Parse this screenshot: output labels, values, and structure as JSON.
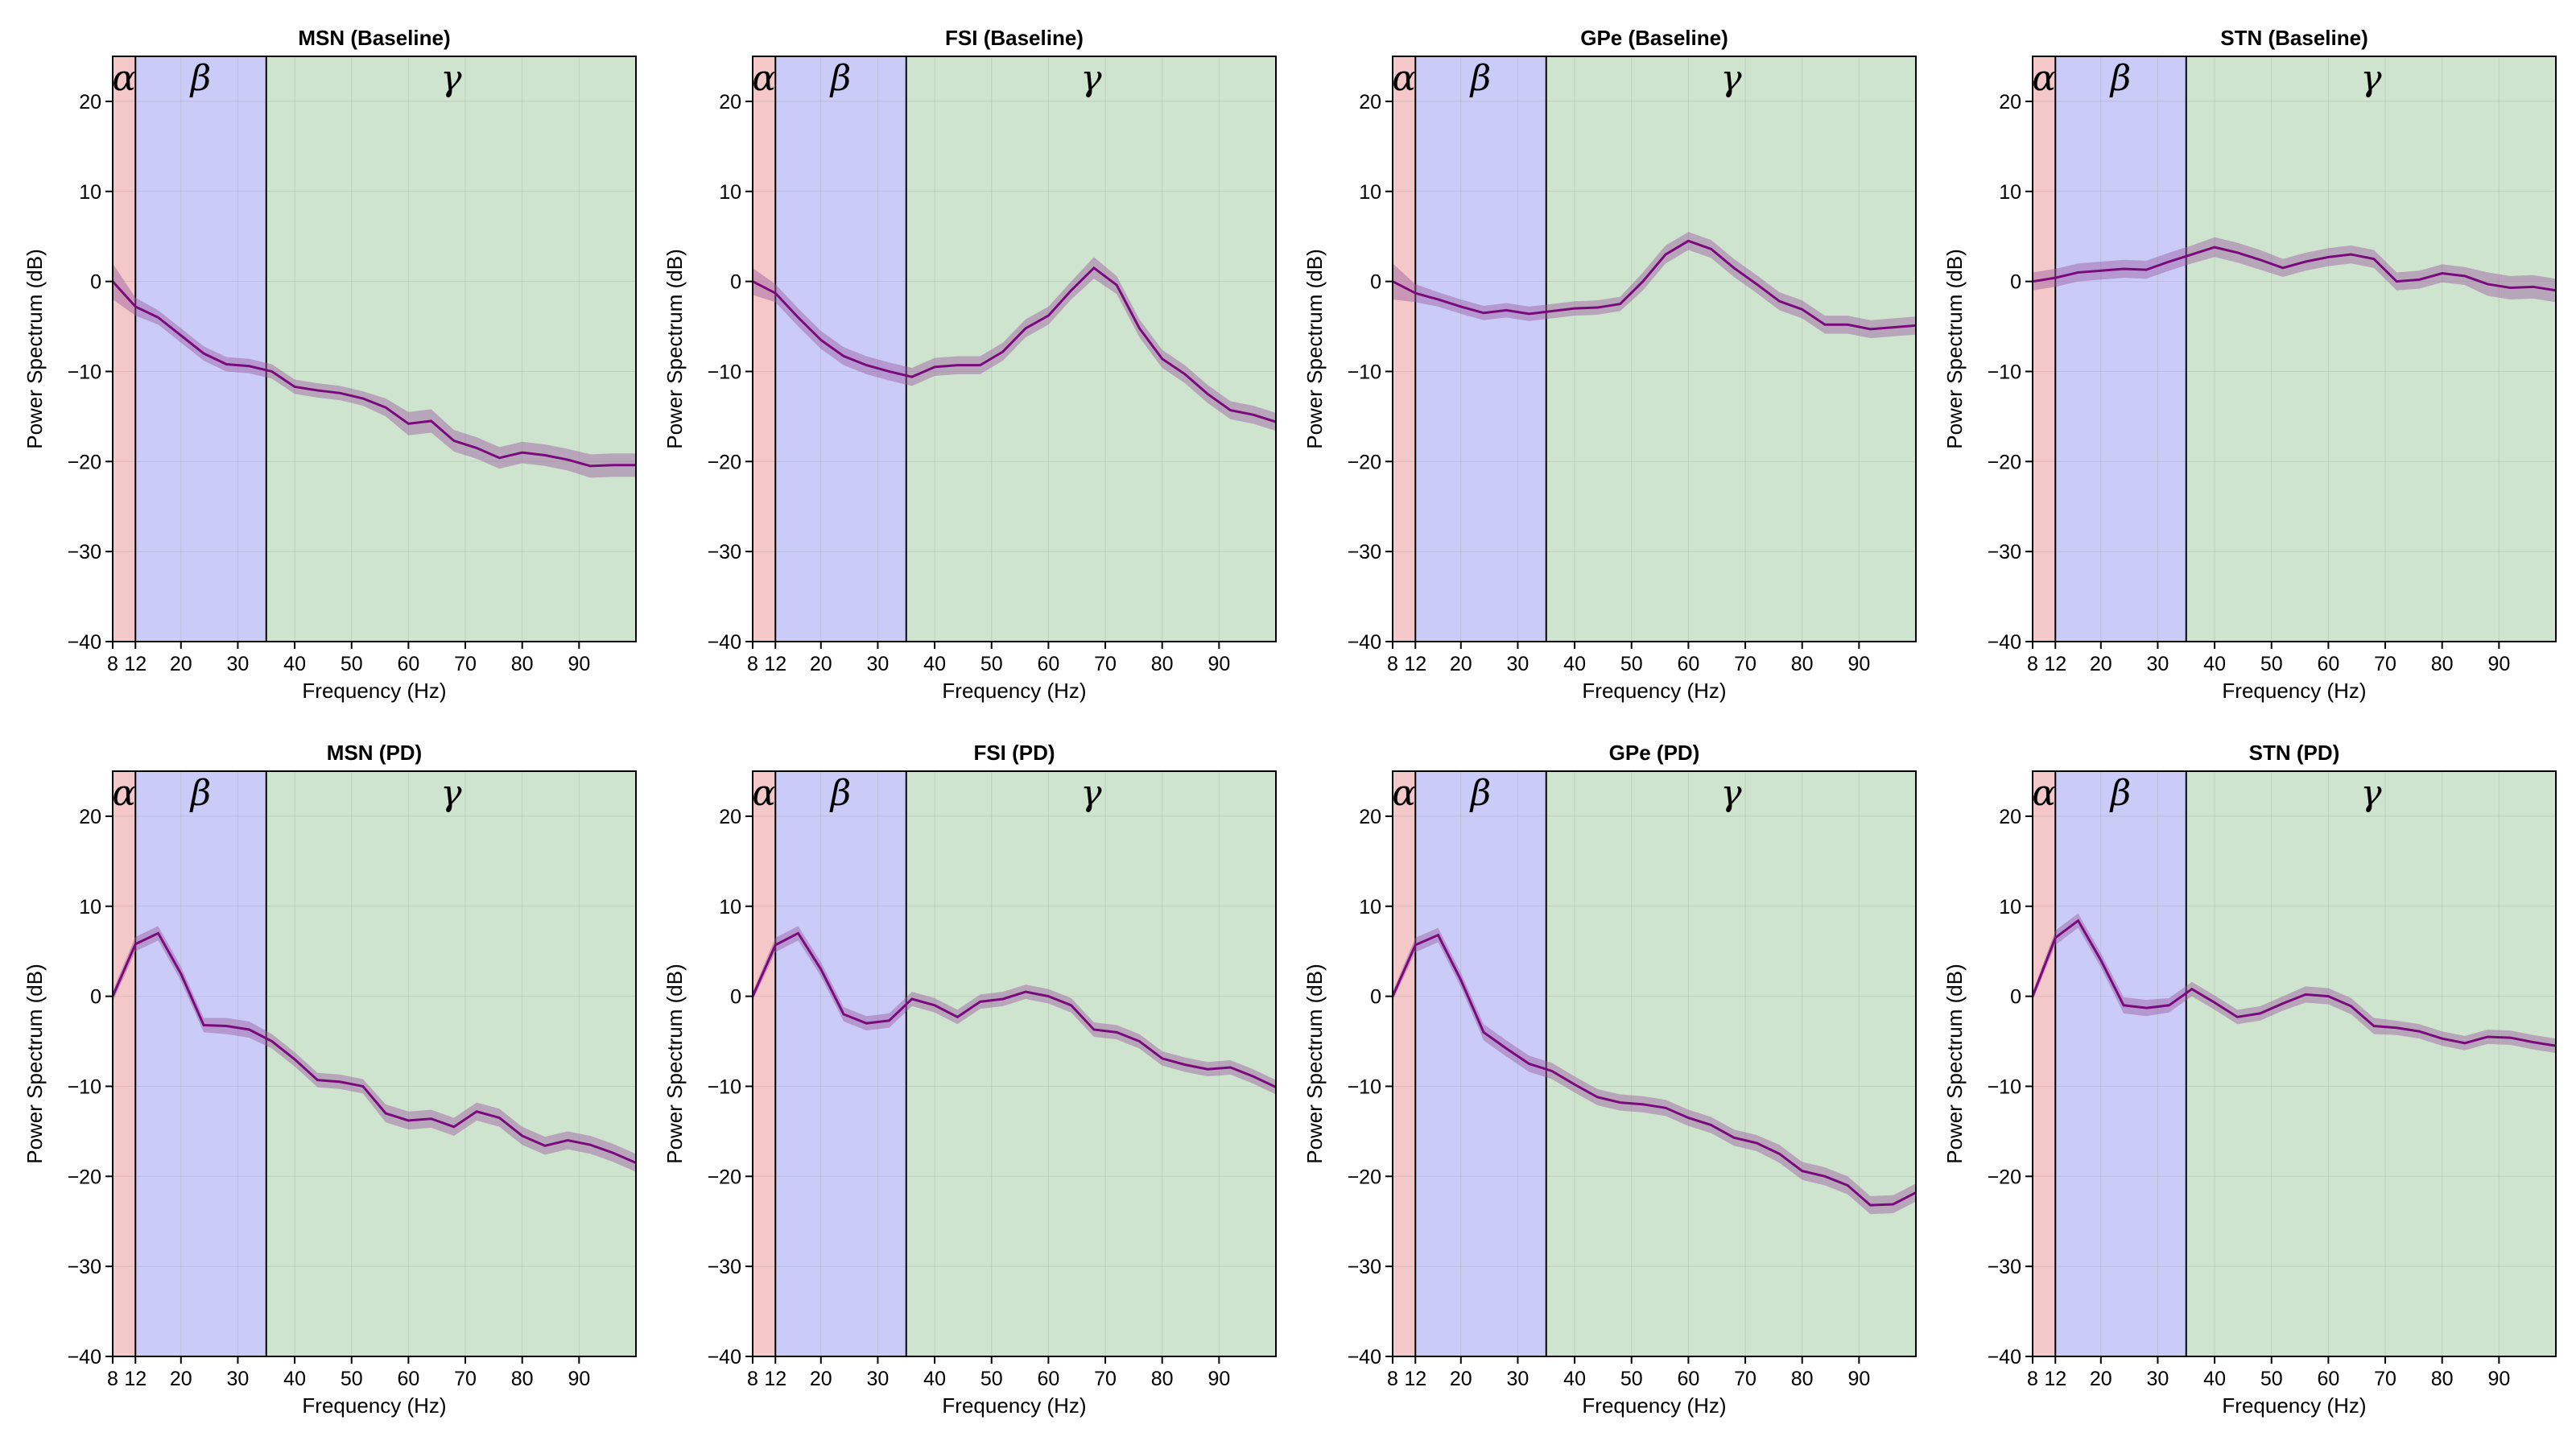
{
  "colors": {
    "alpha_band": "#f4c7c9",
    "beta_band": "#cbcbf8",
    "gamma_band": "#cfe4cf",
    "grid": "#9aa99a",
    "line": "#7a0a7c",
    "ci": "#9a5a9e"
  },
  "chart_data": [
    {
      "type": "line",
      "title": "MSN (Baseline)",
      "xlabel": "Frequency (Hz)",
      "ylabel": "Power Spectrum (dB)",
      "xlim": [
        8,
        100
      ],
      "ylim": [
        -40,
        25
      ],
      "xticks": [
        8,
        12,
        20,
        30,
        40,
        50,
        60,
        70,
        80,
        90
      ],
      "yticks": [
        -40,
        -30,
        -20,
        -10,
        0,
        10,
        20
      ],
      "bands": [
        {
          "label": "α",
          "from": 8,
          "to": 12
        },
        {
          "label": "β",
          "from": 12,
          "to": 35
        },
        {
          "label": "γ",
          "from": 35,
          "to": 100
        }
      ],
      "grid": true,
      "x": [
        8,
        12,
        16,
        20,
        24,
        28,
        32,
        36,
        40,
        44,
        48,
        52,
        56,
        60,
        64,
        68,
        72,
        76,
        80,
        84,
        88,
        92,
        96,
        100
      ],
      "y": [
        0,
        -2.8,
        -4,
        -6,
        -8,
        -9.2,
        -9.4,
        -10,
        -11.7,
        -12.1,
        -12.4,
        -13,
        -14,
        -15.8,
        -15.5,
        -17.7,
        -18.5,
        -19.6,
        -19,
        -19.3,
        -19.8,
        -20.5,
        -20.4,
        -20.4
      ],
      "ci": [
        2,
        1,
        0.8,
        0.8,
        0.8,
        0.8,
        0.8,
        0.8,
        0.8,
        0.8,
        0.8,
        0.8,
        1,
        1.3,
        1.3,
        1.2,
        1.2,
        1.2,
        1.2,
        1.2,
        1.2,
        1.3,
        1.3,
        1.3
      ]
    },
    {
      "type": "line",
      "title": "FSI (Baseline)",
      "xlabel": "Frequency (Hz)",
      "ylabel": "Power Spectrum (dB)",
      "xlim": [
        8,
        100
      ],
      "ylim": [
        -40,
        25
      ],
      "xticks": [
        8,
        12,
        20,
        30,
        40,
        50,
        60,
        70,
        80,
        90
      ],
      "yticks": [
        -40,
        -30,
        -20,
        -10,
        0,
        10,
        20
      ],
      "bands": [
        {
          "label": "α",
          "from": 8,
          "to": 12
        },
        {
          "label": "β",
          "from": 12,
          "to": 35
        },
        {
          "label": "γ",
          "from": 35,
          "to": 100
        }
      ],
      "grid": true,
      "x": [
        8,
        12,
        16,
        20,
        24,
        28,
        32,
        36,
        40,
        44,
        48,
        52,
        56,
        60,
        64,
        68,
        72,
        76,
        80,
        84,
        88,
        92,
        96,
        100
      ],
      "y": [
        0,
        -1.3,
        -4,
        -6.5,
        -8.3,
        -9.3,
        -10,
        -10.6,
        -9.5,
        -9.3,
        -9.3,
        -7.8,
        -5.2,
        -3.8,
        -1,
        1.5,
        -0.4,
        -5.2,
        -8.6,
        -10.3,
        -12.5,
        -14.3,
        -14.8,
        -15.6
      ],
      "ci": [
        1.5,
        1,
        1,
        1,
        1,
        1,
        1,
        1,
        1,
        1,
        1,
        1,
        1,
        1,
        1,
        1.2,
        1,
        1,
        1,
        1,
        1,
        1,
        1,
        1
      ]
    },
    {
      "type": "line",
      "title": "GPe (Baseline)",
      "xlabel": "Frequency (Hz)",
      "ylabel": "Power Spectrum (dB)",
      "xlim": [
        8,
        100
      ],
      "ylim": [
        -40,
        25
      ],
      "xticks": [
        8,
        12,
        20,
        30,
        40,
        50,
        60,
        70,
        80,
        90
      ],
      "yticks": [
        -40,
        -30,
        -20,
        -10,
        0,
        10,
        20
      ],
      "bands": [
        {
          "label": "α",
          "from": 8,
          "to": 12
        },
        {
          "label": "β",
          "from": 12,
          "to": 35
        },
        {
          "label": "γ",
          "from": 35,
          "to": 100
        }
      ],
      "grid": true,
      "x": [
        8,
        12,
        16,
        20,
        24,
        28,
        32,
        36,
        40,
        44,
        48,
        52,
        56,
        60,
        64,
        68,
        72,
        76,
        80,
        84,
        88,
        92,
        96,
        100
      ],
      "y": [
        0,
        -1.3,
        -2,
        -2.8,
        -3.5,
        -3.2,
        -3.6,
        -3.3,
        -3,
        -2.9,
        -2.5,
        0,
        3,
        4.5,
        3.6,
        1.5,
        -0.3,
        -2.2,
        -3.1,
        -4.8,
        -4.8,
        -5.3,
        -5.1,
        -4.9
      ],
      "ci": [
        2,
        1,
        0.8,
        0.8,
        0.8,
        0.8,
        0.8,
        0.8,
        0.8,
        0.8,
        0.8,
        1,
        1,
        1,
        1,
        1,
        1,
        1,
        1,
        1,
        1,
        1,
        1,
        1
      ]
    },
    {
      "type": "line",
      "title": "STN (Baseline)",
      "xlabel": "Frequency (Hz)",
      "ylabel": "Power Spectrum (dB)",
      "xlim": [
        8,
        100
      ],
      "ylim": [
        -40,
        25
      ],
      "xticks": [
        8,
        12,
        20,
        30,
        40,
        50,
        60,
        70,
        80,
        90
      ],
      "yticks": [
        -40,
        -30,
        -20,
        -10,
        0,
        10,
        20
      ],
      "bands": [
        {
          "label": "α",
          "from": 8,
          "to": 12
        },
        {
          "label": "β",
          "from": 12,
          "to": 35
        },
        {
          "label": "γ",
          "from": 35,
          "to": 100
        }
      ],
      "grid": true,
      "x": [
        8,
        12,
        16,
        20,
        24,
        28,
        32,
        36,
        40,
        44,
        48,
        52,
        56,
        60,
        64,
        68,
        72,
        76,
        80,
        84,
        88,
        92,
        96,
        100
      ],
      "y": [
        0,
        0.4,
        1,
        1.2,
        1.4,
        1.3,
        2.2,
        3,
        3.8,
        3.2,
        2.4,
        1.5,
        2.2,
        2.7,
        3,
        2.5,
        0,
        0.2,
        0.9,
        0.6,
        -0.3,
        -0.7,
        -0.6,
        -1
      ],
      "ci": [
        1,
        1,
        1,
        1,
        1,
        1,
        1,
        1,
        1.1,
        1.1,
        1.1,
        1,
        1,
        1,
        1,
        1,
        1,
        1,
        1,
        1,
        1.3,
        1.3,
        1.3,
        1.3
      ]
    },
    {
      "type": "line",
      "title": "MSN (PD)",
      "xlabel": "Frequency (Hz)",
      "ylabel": "Power Spectrum (dB)",
      "xlim": [
        8,
        100
      ],
      "ylim": [
        -40,
        25
      ],
      "xticks": [
        8,
        12,
        20,
        30,
        40,
        50,
        60,
        70,
        80,
        90
      ],
      "yticks": [
        -40,
        -30,
        -20,
        -10,
        0,
        10,
        20
      ],
      "bands": [
        {
          "label": "α",
          "from": 8,
          "to": 12
        },
        {
          "label": "β",
          "from": 12,
          "to": 35
        },
        {
          "label": "γ",
          "from": 35,
          "to": 100
        }
      ],
      "grid": true,
      "x": [
        8,
        12,
        16,
        20,
        24,
        28,
        32,
        36,
        40,
        44,
        48,
        52,
        56,
        60,
        64,
        68,
        72,
        76,
        80,
        84,
        88,
        92,
        96,
        100
      ],
      "y": [
        0,
        5.8,
        7,
        2.5,
        -3.2,
        -3.3,
        -3.7,
        -5,
        -7,
        -9.3,
        -9.5,
        -10,
        -13,
        -13.8,
        -13.6,
        -14.5,
        -12.8,
        -13.5,
        -15.5,
        -16.6,
        -16,
        -16.5,
        -17.4,
        -18.5
      ],
      "ci": [
        0.6,
        0.8,
        0.8,
        0.8,
        0.8,
        0.9,
        0.9,
        0.8,
        0.8,
        0.8,
        0.8,
        0.8,
        1,
        1,
        1,
        1,
        1,
        1,
        1,
        1,
        1,
        1,
        1,
        1
      ]
    },
    {
      "type": "line",
      "title": "FSI (PD)",
      "xlabel": "Frequency (Hz)",
      "ylabel": "Power Spectrum (dB)",
      "xlim": [
        8,
        100
      ],
      "ylim": [
        -40,
        25
      ],
      "xticks": [
        8,
        12,
        20,
        30,
        40,
        50,
        60,
        70,
        80,
        90
      ],
      "yticks": [
        -40,
        -30,
        -20,
        -10,
        0,
        10,
        20
      ],
      "bands": [
        {
          "label": "α",
          "from": 8,
          "to": 12
        },
        {
          "label": "β",
          "from": 12,
          "to": 35
        },
        {
          "label": "γ",
          "from": 35,
          "to": 100
        }
      ],
      "grid": true,
      "x": [
        8,
        12,
        16,
        20,
        24,
        28,
        32,
        36,
        40,
        44,
        48,
        52,
        56,
        60,
        64,
        68,
        72,
        76,
        80,
        84,
        88,
        92,
        96,
        100
      ],
      "y": [
        0,
        5.7,
        7,
        3,
        -2,
        -3,
        -2.7,
        -0.3,
        -1,
        -2.3,
        -0.6,
        -0.3,
        0.5,
        0,
        -1,
        -3.7,
        -4,
        -5,
        -6.9,
        -7.6,
        -8.1,
        -7.9,
        -8.9,
        -10.1
      ],
      "ci": [
        0.5,
        0.8,
        0.8,
        0.8,
        0.8,
        0.8,
        0.8,
        0.8,
        0.8,
        0.8,
        0.8,
        0.8,
        0.8,
        0.8,
        0.8,
        0.8,
        0.8,
        0.8,
        0.8,
        0.8,
        0.8,
        0.8,
        0.8,
        0.8
      ]
    },
    {
      "type": "line",
      "title": "GPe (PD)",
      "xlabel": "Frequency (Hz)",
      "ylabel": "Power Spectrum (dB)",
      "xlim": [
        8,
        100
      ],
      "ylim": [
        -40,
        25
      ],
      "xticks": [
        8,
        12,
        20,
        30,
        40,
        50,
        60,
        70,
        80,
        90
      ],
      "yticks": [
        -40,
        -30,
        -20,
        -10,
        0,
        10,
        20
      ],
      "bands": [
        {
          "label": "α",
          "from": 8,
          "to": 12
        },
        {
          "label": "β",
          "from": 12,
          "to": 35
        },
        {
          "label": "γ",
          "from": 35,
          "to": 100
        }
      ],
      "grid": true,
      "x": [
        8,
        12,
        16,
        20,
        24,
        28,
        32,
        36,
        40,
        44,
        48,
        52,
        56,
        60,
        64,
        68,
        72,
        76,
        80,
        84,
        88,
        92,
        96,
        100
      ],
      "y": [
        0,
        5.7,
        6.8,
        1.8,
        -4,
        -5.8,
        -7.5,
        -8.3,
        -9.8,
        -11.2,
        -11.8,
        -12,
        -12.4,
        -13.5,
        -14.3,
        -15.7,
        -16.3,
        -17.5,
        -19.4,
        -20,
        -21,
        -23.2,
        -23.1,
        -21.8
      ],
      "ci": [
        0.5,
        0.8,
        0.8,
        0.8,
        0.9,
        0.9,
        0.9,
        0.9,
        0.9,
        0.9,
        0.9,
        0.9,
        0.9,
        0.9,
        0.9,
        0.9,
        0.9,
        1,
        1,
        1,
        1,
        1,
        1,
        1
      ]
    },
    {
      "type": "line",
      "title": "STN (PD)",
      "xlabel": "Frequency (Hz)",
      "ylabel": "Power Spectrum (dB)",
      "xlim": [
        8,
        100
      ],
      "ylim": [
        -40,
        25
      ],
      "xticks": [
        8,
        12,
        20,
        30,
        40,
        50,
        60,
        70,
        80,
        90
      ],
      "yticks": [
        -40,
        -30,
        -20,
        -10,
        0,
        10,
        20
      ],
      "bands": [
        {
          "label": "α",
          "from": 8,
          "to": 12
        },
        {
          "label": "β",
          "from": 12,
          "to": 35
        },
        {
          "label": "γ",
          "from": 35,
          "to": 100
        }
      ],
      "grid": true,
      "x": [
        8,
        12,
        16,
        20,
        24,
        28,
        32,
        36,
        40,
        44,
        48,
        52,
        56,
        60,
        64,
        68,
        72,
        76,
        80,
        84,
        88,
        92,
        96,
        100
      ],
      "y": [
        0,
        6.5,
        8.4,
        4,
        -1,
        -1.3,
        -1,
        0.8,
        -0.7,
        -2.3,
        -1.9,
        -0.8,
        0.2,
        0,
        -1.1,
        -3.3,
        -3.5,
        -3.9,
        -4.7,
        -5.2,
        -4.5,
        -4.6,
        -5.1,
        -5.5
      ],
      "ci": [
        0.5,
        0.8,
        0.8,
        0.8,
        0.9,
        0.9,
        0.8,
        0.8,
        0.8,
        0.8,
        0.8,
        0.8,
        0.9,
        0.9,
        0.9,
        0.9,
        0.8,
        0.8,
        0.8,
        0.8,
        0.8,
        0.8,
        0.8,
        0.8
      ]
    }
  ]
}
